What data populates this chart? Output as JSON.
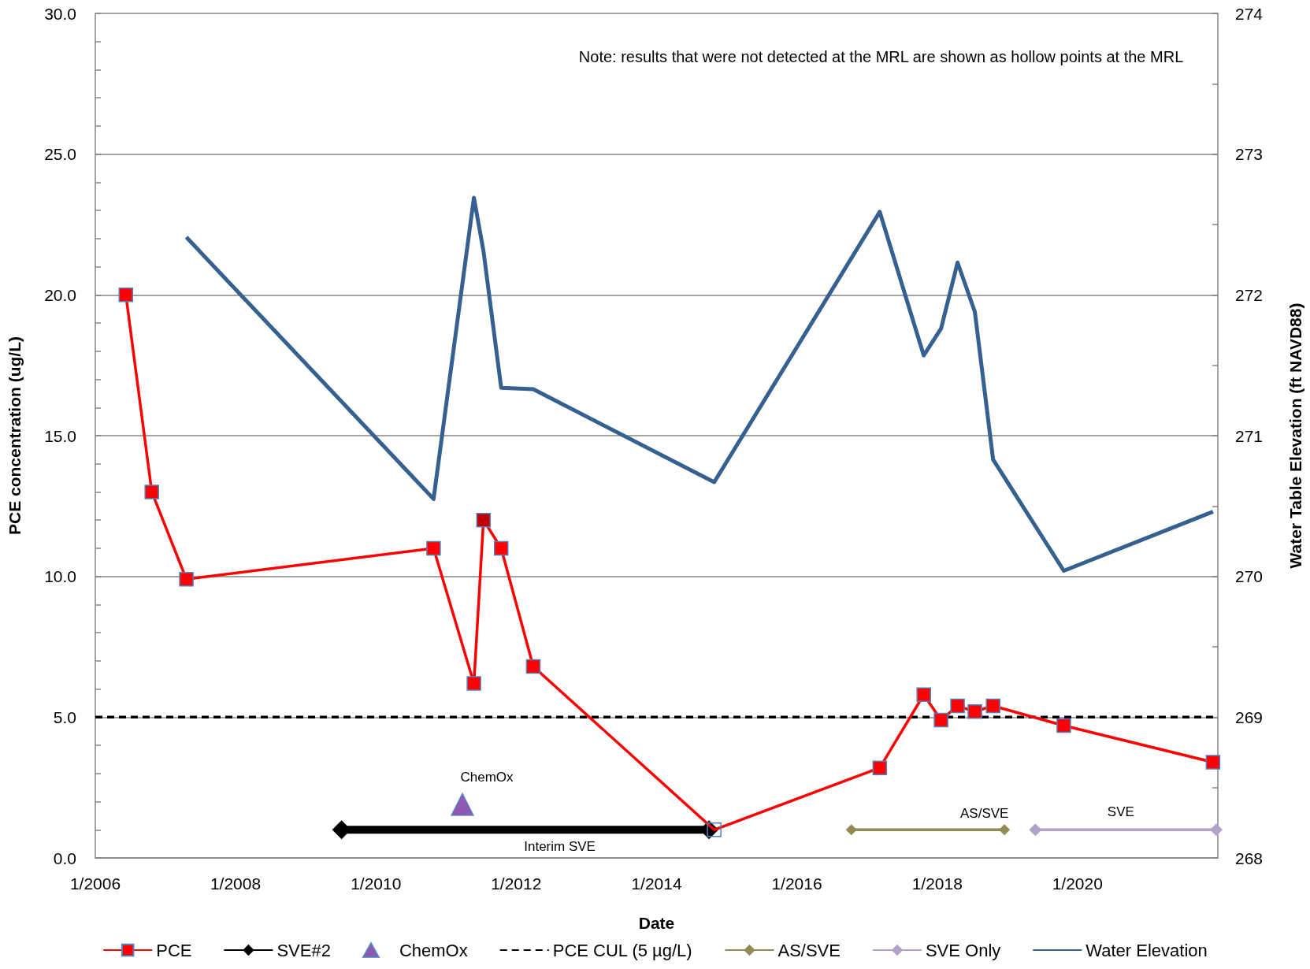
{
  "chart_data": {
    "type": "line",
    "xlabel": "Date",
    "ylabel": "PCE concentration (ug/L)",
    "y2label": "Water Table Elevation (ft NAVD88)",
    "xlim": [
      "2006-01-01",
      "2022-01-01"
    ],
    "xticks": [
      {
        "value": "2006-01-01",
        "label": "1/2006"
      },
      {
        "value": "2008-01-01",
        "label": "1/2008"
      },
      {
        "value": "2010-01-01",
        "label": "1/2010"
      },
      {
        "value": "2012-01-01",
        "label": "1/2012"
      },
      {
        "value": "2014-01-01",
        "label": "1/2014"
      },
      {
        "value": "2016-01-01",
        "label": "1/2016"
      },
      {
        "value": "2018-01-01",
        "label": "1/2018"
      },
      {
        "value": "2020-01-01",
        "label": "1/2020"
      }
    ],
    "ylim": [
      0,
      30
    ],
    "yticks": [
      {
        "value": 0,
        "label": "0.0"
      },
      {
        "value": 1,
        "label": null
      },
      {
        "value": 2,
        "label": null
      },
      {
        "value": 3,
        "label": null
      },
      {
        "value": 4,
        "label": null
      },
      {
        "value": 5,
        "label": "5.0"
      },
      {
        "value": 6,
        "label": null
      },
      {
        "value": 7,
        "label": null
      },
      {
        "value": 8,
        "label": null
      },
      {
        "value": 9,
        "label": null
      },
      {
        "value": 10,
        "label": "10.0"
      },
      {
        "value": 11,
        "label": null
      },
      {
        "value": 12,
        "label": null
      },
      {
        "value": 13,
        "label": null
      },
      {
        "value": 14,
        "label": null
      },
      {
        "value": 15,
        "label": "15.0"
      },
      {
        "value": 16,
        "label": null
      },
      {
        "value": 17,
        "label": null
      },
      {
        "value": 18,
        "label": null
      },
      {
        "value": 19,
        "label": null
      },
      {
        "value": 20,
        "label": "20.0"
      },
      {
        "value": 21,
        "label": null
      },
      {
        "value": 22,
        "label": null
      },
      {
        "value": 23,
        "label": null
      },
      {
        "value": 24,
        "label": null
      },
      {
        "value": 25,
        "label": "25.0"
      },
      {
        "value": 26,
        "label": null
      },
      {
        "value": 27,
        "label": null
      },
      {
        "value": 28,
        "label": null
      },
      {
        "value": 29,
        "label": null
      },
      {
        "value": 30,
        "label": "30.0"
      }
    ],
    "y2lim": [
      268,
      274
    ],
    "y2ticks": [
      268,
      {
        "value": 268.5,
        "label": null
      },
      269,
      {
        "value": 269.5,
        "label": null
      },
      270,
      {
        "value": 270.5,
        "label": null
      },
      271,
      {
        "value": 271.5,
        "label": null
      },
      272,
      {
        "value": 272.5,
        "label": null
      },
      273,
      {
        "value": 273.5,
        "label": null
      },
      274
    ],
    "grid": "y",
    "legend": "bottom",
    "series": [
      {
        "name": "PCE",
        "color": "#ff0000",
        "marker": "square",
        "x": [
          "2006-06-09",
          "2006-10-22",
          "2007-04-20",
          "2010-10-28",
          "2011-05-26",
          "2011-07-15",
          "2011-10-15",
          "2012-03-30",
          "2014-10-28",
          "2017-03-08",
          "2017-10-23",
          "2018-01-21",
          "2018-04-17",
          "2018-07-16",
          "2018-10-19",
          "2019-10-22",
          "2021-12-07"
        ],
        "values": [
          20.0,
          13.0,
          9.9,
          11.0,
          6.2,
          12.0,
          11.0,
          6.8,
          1.0,
          3.2,
          5.8,
          4.9,
          5.4,
          5.2,
          5.4,
          4.7,
          3.4
        ],
        "colors": [
          "#ff0000",
          "#ff0000",
          "#ff0000",
          "#ff0000",
          "#ff0000",
          "#c00000",
          "#ff0000",
          "#ff0000",
          null,
          "#ff0000",
          "#ff0000",
          "#ff0000",
          "#ff0000",
          "#ff0000",
          "#ff0000",
          "#ff0000",
          "#ff0000"
        ]
      },
      {
        "name": "SVE#2",
        "color": "#000000",
        "marker": "diamond",
        "x": [
          "2009-07-06",
          "2014-10-01"
        ],
        "values": [
          1.0,
          1.0
        ]
      },
      {
        "name": "ChemOx",
        "type": "scatter",
        "color": "#7030a0",
        "marker": "triangle",
        "x": [
          "2011-03-27"
        ],
        "values": [
          1.9
        ]
      },
      {
        "name": "PCE CUL (5 µg/L)",
        "color": "#000000",
        "marker": "none",
        "line_style": "dashed",
        "x": [
          "2006-01-01",
          "2022-01-01"
        ],
        "values": [
          5.0,
          5.0
        ]
      },
      {
        "name": "AS/SVE",
        "color": "#948a54",
        "marker": "diamond",
        "x": [
          "2016-10-11",
          "2018-12-17"
        ],
        "values": [
          1.0,
          1.0
        ]
      },
      {
        "name": "SVE Only",
        "color": "#b3a2c7",
        "marker": "diamond",
        "x": [
          "2019-05-27",
          "2021-12-24"
        ],
        "values": [
          1.0,
          1.0
        ]
      },
      {
        "name": "Water Elevation",
        "color": "#35608f",
        "marker": "none",
        "axis": "y2",
        "x": [
          "2007-04-20",
          "2010-10-28",
          "2011-05-26",
          "2011-07-15",
          "2011-10-15",
          "2012-03-30",
          "2014-10-28",
          "2017-03-08",
          "2017-10-23",
          "2018-01-21",
          "2018-04-17",
          "2018-07-16",
          "2018-10-19",
          "2019-10-22",
          "2021-12-07"
        ],
        "values": [
          272.41,
          270.55,
          272.69,
          272.31,
          271.34,
          271.33,
          270.67,
          272.59,
          271.57,
          271.76,
          272.23,
          271.88,
          270.83,
          270.04,
          270.46
        ]
      }
    ],
    "annotations": [
      "Note: results that were not detected at the MRL are shown as hollow points at the MRL",
      {
        "text": "ChemOx",
        "x": "2011-03-27",
        "y": 1.9
      },
      {
        "text": "Interim SVE",
        "x": "2012-08-15",
        "y": 1.0
      },
      {
        "text": "AS/SVE",
        "x": "2018-09-04",
        "y": 1.0
      },
      {
        "text": "SVE",
        "x": "2020-08-14",
        "y": 1.0
      }
    ]
  }
}
